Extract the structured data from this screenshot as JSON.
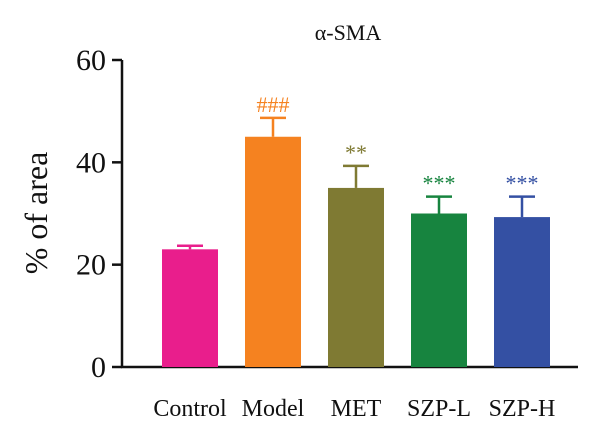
{
  "chart_data": {
    "type": "bar",
    "title": "α-SMA",
    "xlabel": "",
    "ylabel": "% of area",
    "ylim": [
      0,
      60
    ],
    "yticks": [
      0,
      20,
      40,
      60
    ],
    "grid": false,
    "categories": [
      "Control",
      "Model",
      "MET",
      "SZP-L",
      "SZP-H"
    ],
    "values": [
      23,
      45,
      35,
      30,
      29.3
    ],
    "errors": [
      0.7,
      3.7,
      4.3,
      3.3,
      4.0
    ],
    "annotations": [
      "",
      "###",
      "**",
      "***",
      "***"
    ],
    "colors": [
      "#e91e8c",
      "#f58220",
      "#7f7a33",
      "#17843f",
      "#3450a3"
    ]
  }
}
